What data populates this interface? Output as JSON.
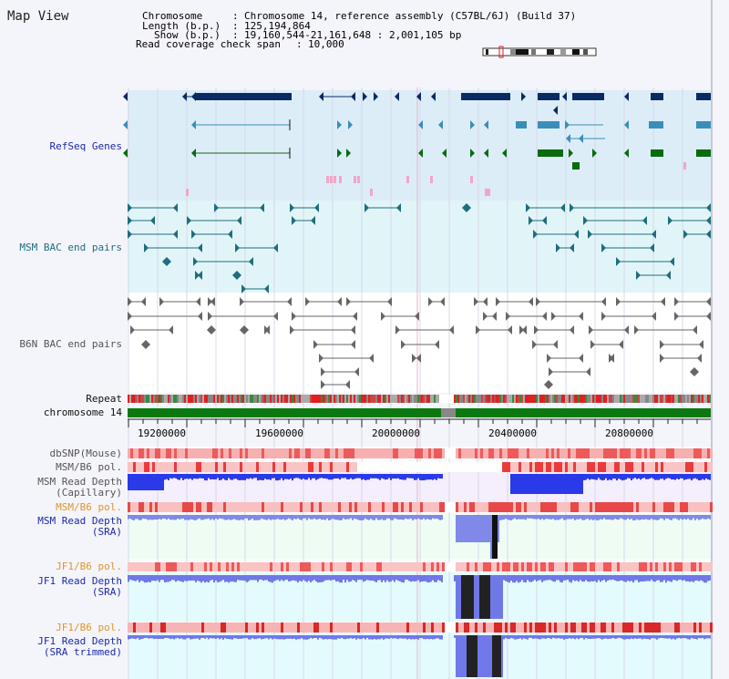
{
  "header": {
    "title": "Map View",
    "chromosome_key": "Chromosome",
    "chromosome_val": "Chromosome 14, reference assembly (C57BL/6J) (Build 37)",
    "length_key": "Length (b.p.)",
    "length_val": "125,194,864",
    "show_key": "Show (b.p.)",
    "show_val": "19,160,544-21,161,648 : 2,001,105 bp",
    "coverage_key": "Read coverage check span",
    "coverage_val": "10,000"
  },
  "tracks": {
    "refseq": "RefSeq Genes",
    "msm_bac": "MSM BAC end pairs",
    "b6n_bac": "B6N BAC end pairs",
    "repeat": "Repeat",
    "chromosome": "chromosome 14",
    "dbsnp": "dbSNP(Mouse)",
    "msm_b6_pol_1": "MSM/B6 pol.",
    "msm_depth_cap_1": "MSM Read Depth",
    "msm_depth_cap_2": "(Capillary)",
    "msm_b6_pol_2": "MSM/B6 pol.",
    "msm_depth_sra_1": "MSM Read Depth",
    "msm_depth_sra_2": "(SRA)",
    "jf1_b6_pol_1": "JF1/B6 pol.",
    "jf1_depth_sra_1": "JF1 Read Depth",
    "jf1_depth_sra_2": "(SRA)",
    "jf1_b6_pol_2": "JF1/B6 pol.",
    "jf1_depth_trim_1": "JF1 Read Depth",
    "jf1_depth_trim_2": "(SRA trimmed)"
  },
  "axis": {
    "ticks": [
      "19200000",
      "19600000",
      "20000000",
      "20400000",
      "20800000"
    ]
  },
  "colors": {
    "refseq_dark": "#0a2a63",
    "refseq_light": "#3a8fb8",
    "refseq_green": "#0a6a10",
    "refseq_pink": "#f4a4c8",
    "msm_bac": "#1f6d7e",
    "b6n_bac": "#666666",
    "chrom_green": "#0a7a10",
    "depth_blue": "#2233ee",
    "depth_light": "#8890ee"
  }
}
